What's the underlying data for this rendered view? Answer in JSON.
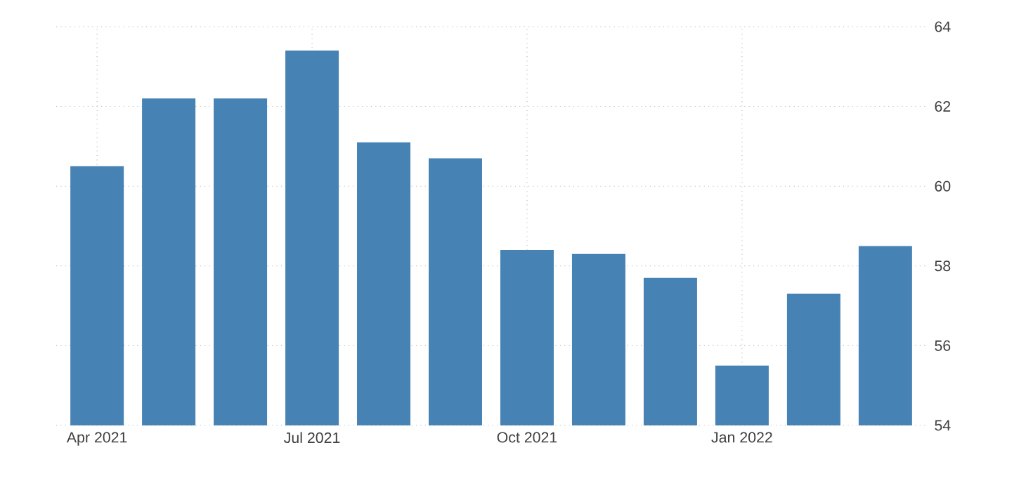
{
  "chart_data": {
    "type": "bar",
    "categories": [
      "Apr 2021",
      null,
      null,
      "Jul 2021",
      null,
      null,
      "Oct 2021",
      null,
      null,
      "Jan 2022",
      null,
      null
    ],
    "values": [
      60.5,
      62.2,
      62.2,
      63.4,
      61.1,
      60.7,
      58.4,
      58.3,
      57.7,
      55.5,
      57.3,
      58.5
    ],
    "color": "#4682b4",
    "ylim": [
      54,
      64
    ],
    "yticks": [
      54,
      56,
      58,
      60,
      62,
      64
    ],
    "grid": true
  }
}
